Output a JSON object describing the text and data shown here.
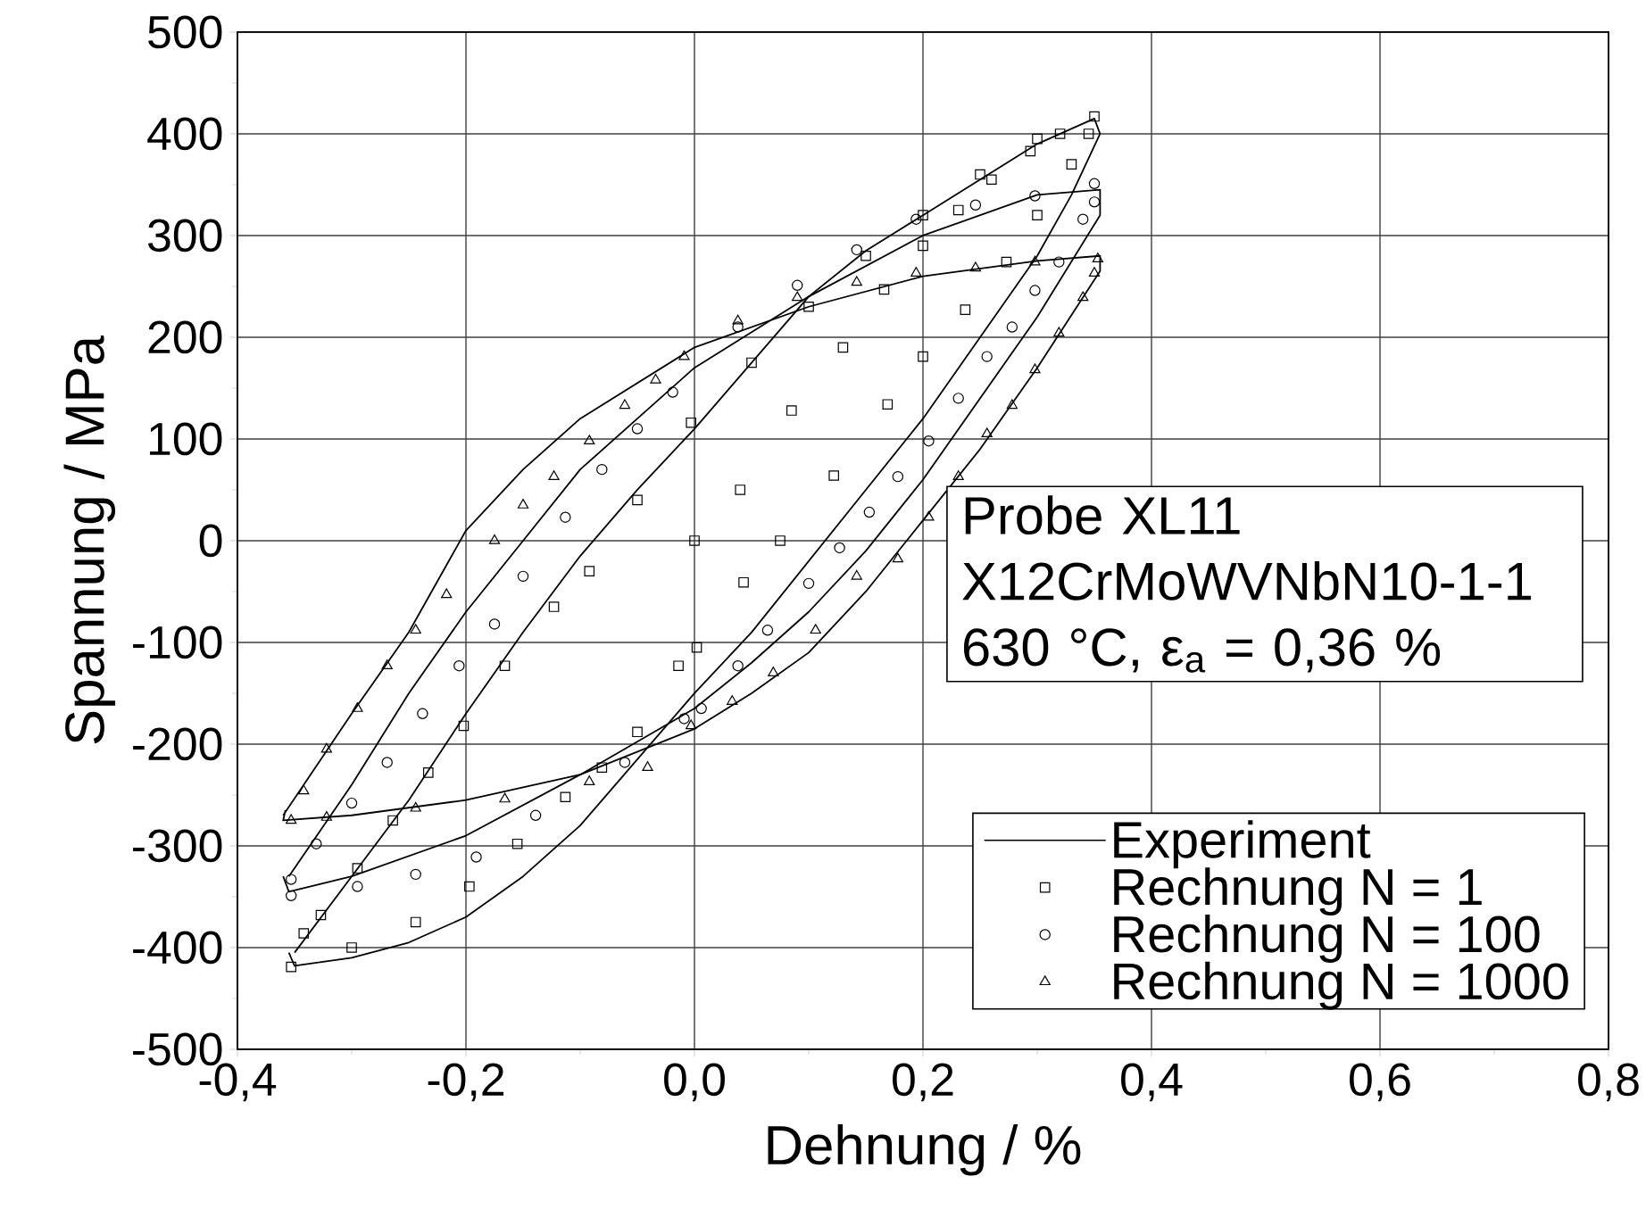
{
  "chart_data": {
    "type": "scatter",
    "xlabel": "Dehnung / %",
    "ylabel": "Spannung / MPa",
    "xlim": [
      -0.4,
      0.8
    ],
    "ylim": [
      -500,
      500
    ],
    "xticks": [
      {
        "value": -0.4,
        "label": "-0,4"
      },
      {
        "value": -0.2,
        "label": "-0,2"
      },
      {
        "value": 0,
        "label": "0,0"
      },
      {
        "value": 0.2,
        "label": "0,2"
      },
      {
        "value": 0.4,
        "label": "0,4"
      },
      {
        "value": 0.6,
        "label": "0,6"
      },
      {
        "value": 0.8,
        "label": "0,8"
      }
    ],
    "yticks": [
      -500,
      -400,
      -300,
      -200,
      -100,
      0,
      100,
      200,
      300,
      400,
      500
    ],
    "grid": true,
    "legend": "bottom right",
    "annotations": [
      "Probe XL11",
      "X12CrMoWVNbN10-1-1",
      "630 °C, ε$_{a}$ = 0,36 %"
    ],
    "series": [
      {
        "name": "Experiment",
        "type": "line",
        "marker": "none",
        "color": "#000000",
        "x": [
          -0.35,
          -0.3,
          -0.25,
          -0.2,
          -0.15,
          -0.1,
          -0.05,
          0,
          0.05,
          0.1,
          0.15,
          0.2,
          0.25,
          0.3,
          0.35,
          0.355,
          0.33,
          0.3,
          0.25,
          0.2,
          0.15,
          0.1,
          0.05,
          0,
          -0.05,
          -0.1,
          -0.15,
          -0.2,
          -0.25,
          -0.3,
          -0.35,
          -0.355
        ],
        "values": [
          -405,
          -330,
          -255,
          -170,
          -90,
          -15,
          50,
          110,
          175,
          240,
          285,
          320,
          355,
          390,
          415,
          400,
          340,
          280,
          200,
          120,
          50,
          -20,
          -90,
          -150,
          -215,
          -280,
          -330,
          -370,
          -395,
          -410,
          -418,
          -405
        ]
      },
      {
        "type": "line",
        "marker": "none",
        "color": "#000000",
        "x": [
          -0.355,
          -0.3,
          -0.25,
          -0.2,
          -0.15,
          -0.1,
          0,
          0.1,
          0.2,
          0.3,
          0.355,
          0.355,
          0.3,
          0.25,
          0.2,
          0.15,
          0.1,
          0.05,
          0,
          -0.1,
          -0.2,
          -0.3,
          -0.355,
          -0.36
        ],
        "values": [
          -330,
          -240,
          -150,
          -70,
          0,
          70,
          170,
          240,
          300,
          340,
          345,
          320,
          220,
          140,
          60,
          -10,
          -70,
          -120,
          -165,
          -230,
          -290,
          -330,
          -345,
          -330
        ]
      },
      {
        "type": "line",
        "marker": "none",
        "color": "#000000",
        "x": [
          -0.36,
          -0.3,
          -0.25,
          -0.2,
          -0.15,
          -0.1,
          0,
          0.1,
          0.2,
          0.3,
          0.355,
          0.355,
          0.3,
          0.25,
          0.2,
          0.15,
          0.1,
          0.05,
          0,
          -0.1,
          -0.2,
          -0.3,
          -0.36,
          -0.358
        ],
        "values": [
          -270,
          -170,
          -90,
          10,
          70,
          120,
          190,
          230,
          260,
          275,
          280,
          265,
          170,
          90,
          20,
          -50,
          -110,
          -150,
          -185,
          -230,
          -255,
          -270,
          -275,
          -265
        ]
      },
      {
        "name": "Rechnung N = 1",
        "type": "scatter",
        "marker": "square",
        "color": "#000000",
        "x": [
          0,
          0.04,
          0.085,
          0.13,
          0.166,
          0.2,
          0.231,
          0.26,
          0.294,
          0.32,
          0.35,
          0.345,
          0.33,
          0.3,
          0.273,
          0.237,
          0.2,
          0.169,
          0.122,
          0.075,
          0.043,
          0.002,
          -0.014,
          -0.05,
          -0.081,
          -0.113,
          -0.155,
          -0.197,
          -0.244,
          -0.3,
          -0.353,
          -0.342,
          -0.327,
          -0.295,
          -0.264,
          -0.233,
          -0.202,
          -0.166,
          -0.123,
          -0.092,
          -0.05,
          -0.003,
          0.05,
          0.1,
          0.15,
          0.2,
          0.25,
          0.3
        ],
        "values": [
          0,
          50,
          128,
          190,
          247,
          290,
          325,
          355,
          383,
          400,
          417,
          400,
          370,
          320,
          274,
          227,
          181,
          134,
          64,
          0,
          -41,
          -105,
          -123,
          -188,
          -223,
          -252,
          -298,
          -340,
          -375,
          -400,
          -419,
          -386,
          -368,
          -322,
          -275,
          -228,
          -182,
          -123,
          -65,
          -30,
          40,
          116,
          175,
          230,
          280,
          320,
          360,
          395
        ]
      },
      {
        "name": "Rechnung N = 100",
        "type": "scatter",
        "marker": "circle",
        "color": "#000000",
        "x": [
          -0.353,
          -0.331,
          -0.3,
          -0.269,
          -0.238,
          -0.206,
          -0.175,
          -0.15,
          -0.113,
          -0.081,
          -0.05,
          -0.019,
          0.038,
          0.09,
          0.142,
          0.194,
          0.246,
          0.298,
          0.35,
          0.35,
          0.34,
          0.319,
          0.298,
          0.278,
          0.256,
          0.231,
          0.205,
          0.178,
          0.153,
          0.127,
          0.1,
          0.064,
          0.038,
          0.006,
          -0.009,
          -0.061,
          -0.139,
          -0.191,
          -0.244,
          -0.295,
          -0.353
        ],
        "values": [
          -333,
          -298,
          -258,
          -218,
          -170,
          -123,
          -82,
          -35,
          23,
          70,
          110,
          146,
          210,
          251,
          286,
          316,
          330,
          339,
          351,
          333,
          316,
          274,
          246,
          210,
          181,
          140,
          98,
          63,
          28,
          -7,
          -42,
          -88,
          -123,
          -165,
          -175,
          -218,
          -270,
          -311,
          -328,
          -340,
          -349
        ]
      },
      {
        "name": "Rechnung N = 1000",
        "type": "scatter",
        "marker": "triangle",
        "color": "#000000",
        "x": [
          -0.353,
          -0.342,
          -0.322,
          -0.295,
          -0.269,
          -0.244,
          -0.217,
          -0.175,
          -0.15,
          -0.123,
          -0.092,
          -0.061,
          -0.034,
          -0.009,
          0.038,
          0.09,
          0.142,
          0.194,
          0.246,
          0.298,
          0.353,
          0.35,
          0.34,
          0.319,
          0.298,
          0.278,
          0.256,
          0.231,
          0.205,
          0.178,
          0.142,
          0.106,
          0.069,
          0.033,
          -0.003,
          -0.041,
          -0.092,
          -0.166,
          -0.244,
          -0.322
        ],
        "values": [
          -275,
          -246,
          -205,
          -165,
          -123,
          -88,
          -53,
          0,
          35,
          63,
          98,
          133,
          158,
          181,
          216,
          239,
          254,
          263,
          268,
          274,
          277,
          263,
          239,
          204,
          168,
          133,
          105,
          63,
          23,
          -18,
          -35,
          -88,
          -130,
          -158,
          -182,
          -223,
          -237,
          -254,
          -263,
          -272
        ]
      }
    ]
  }
}
